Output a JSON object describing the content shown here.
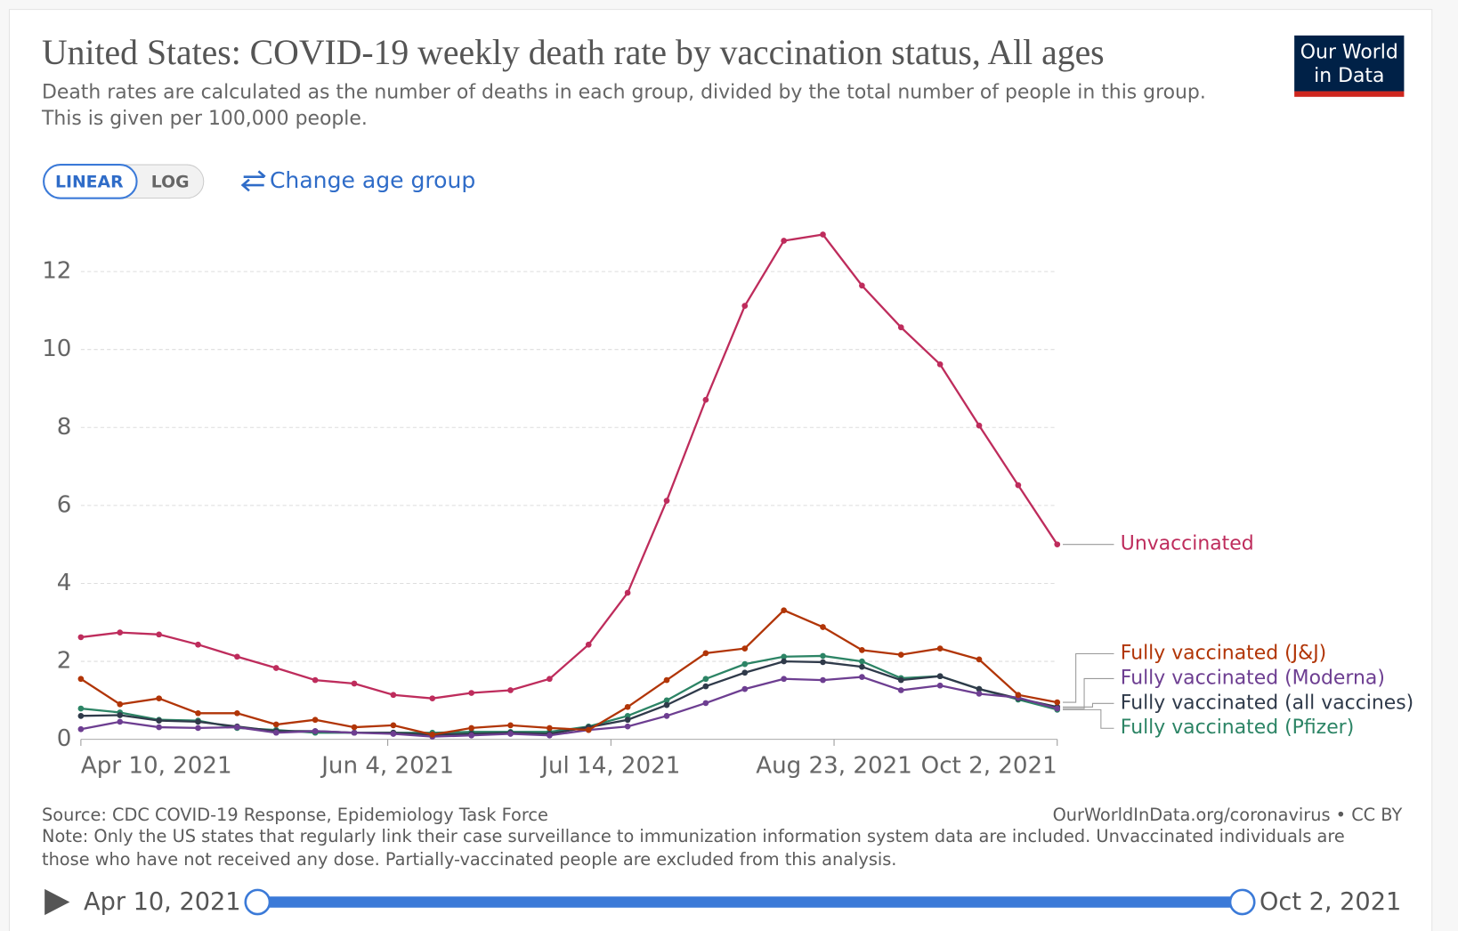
{
  "logo": "Our World in Data",
  "controls": {
    "linear": "LINEAR",
    "log": "LOG",
    "age": "Change age group"
  },
  "timeline": {
    "start": "Apr 10, 2021",
    "end": "Oct 2, 2021"
  },
  "chart_data": {
    "type": "line",
    "title": "United States: COVID-19 weekly death rate by vaccination status, All ages",
    "subtitle": [
      "Death rates are calculated as the number of deaths in each group, divided by the total number of people in this group.",
      "This is given per 100,000 people."
    ],
    "source": "Source: CDC COVID-19 Response, Epidemiology Task Force",
    "url": "OurWorldInData.org/coronavirus • CC BY",
    "note": [
      "Note: Only the US states that regularly link their case surveillance to immunization information system data are included. Unvaccinated individuals are",
      "those who have not received any dose. Partially-vaccinated people are excluded from this analysis."
    ],
    "log_scale": false,
    "grid": true,
    "x": [
      "2021-04-10",
      "2021-04-17",
      "2021-04-24",
      "2021-05-01",
      "2021-05-08",
      "2021-05-15",
      "2021-05-22",
      "2021-05-29",
      "2021-06-05",
      "2021-06-12",
      "2021-06-19",
      "2021-06-26",
      "2021-07-03",
      "2021-07-10",
      "2021-07-17",
      "2021-07-24",
      "2021-07-31",
      "2021-08-07",
      "2021-08-14",
      "2021-08-21",
      "2021-08-28",
      "2021-09-04",
      "2021-09-11",
      "2021-09-18",
      "2021-09-25",
      "2021-10-02"
    ],
    "xlim": [
      "2021-04-10",
      "2021-10-02"
    ],
    "xticks": [
      {
        "value": "2021-04-10",
        "label": "Apr 10, 2021"
      },
      {
        "value": "2021-06-04",
        "label": "Jun 4, 2021"
      },
      {
        "value": "2021-07-14",
        "label": "Jul 14, 2021"
      },
      {
        "value": "2021-08-23",
        "label": "Aug 23, 2021"
      },
      {
        "value": "2021-10-02",
        "label": "Oct 2, 2021"
      }
    ],
    "ylim": [
      0,
      13
    ],
    "yticks": [
      0,
      2,
      4,
      6,
      8,
      10,
      12
    ],
    "series": [
      {
        "name": "Unvaccinated",
        "color": "#be2c5c",
        "values": [
          2.62,
          2.74,
          2.69,
          2.43,
          2.12,
          1.83,
          1.52,
          1.43,
          1.14,
          1.05,
          1.19,
          1.26,
          1.55,
          2.43,
          3.76,
          6.12,
          8.71,
          11.12,
          12.79,
          12.95,
          11.64,
          10.57,
          9.62,
          8.05,
          6.52,
          5.0
        ]
      },
      {
        "name": "Fully vaccinated (J&J)",
        "color": "#b13507",
        "values": [
          1.55,
          0.9,
          1.05,
          0.67,
          0.67,
          0.38,
          0.5,
          0.31,
          0.36,
          0.12,
          0.29,
          0.36,
          0.29,
          0.24,
          0.83,
          1.52,
          2.21,
          2.33,
          3.31,
          2.88,
          2.29,
          2.17,
          2.33,
          2.05,
          1.14,
          0.95
        ]
      },
      {
        "name": "Fully vaccinated (Moderna)",
        "color": "#6d3e91",
        "values": [
          0.26,
          0.45,
          0.31,
          0.29,
          0.31,
          0.17,
          0.21,
          0.17,
          0.14,
          0.07,
          0.1,
          0.14,
          0.1,
          0.24,
          0.33,
          0.6,
          0.93,
          1.29,
          1.55,
          1.52,
          1.6,
          1.26,
          1.38,
          1.17,
          1.07,
          0.79
        ]
      },
      {
        "name": "Fully vaccinated (all vaccines)",
        "color": "#2f3a4a",
        "values": [
          0.6,
          0.62,
          0.48,
          0.45,
          0.33,
          0.21,
          0.21,
          0.17,
          0.17,
          0.12,
          0.14,
          0.17,
          0.14,
          0.31,
          0.5,
          0.88,
          1.36,
          1.71,
          2.0,
          1.98,
          1.86,
          1.52,
          1.62,
          1.29,
          1.05,
          0.83
        ]
      },
      {
        "name": "Fully vaccinated (Pfizer)",
        "color": "#2c8465",
        "values": [
          0.79,
          0.69,
          0.5,
          0.48,
          0.29,
          0.24,
          0.17,
          0.17,
          0.17,
          0.17,
          0.19,
          0.19,
          0.19,
          0.33,
          0.6,
          1.0,
          1.55,
          1.93,
          2.12,
          2.14,
          2.0,
          1.57,
          1.62,
          1.29,
          1.02,
          0.76
        ]
      }
    ]
  }
}
